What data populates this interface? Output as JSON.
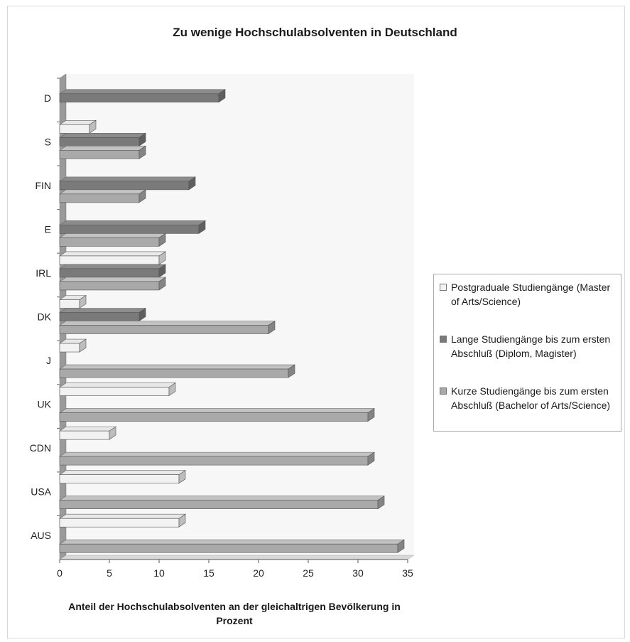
{
  "chart_data": {
    "type": "bar",
    "orientation": "horizontal",
    "title": "Zu wenige Hochschulabsolventen in Deutschland",
    "xlabel": "Anteil der Hochschulabsolventen an der gleichaltrigen Bevölkerung in Prozent",
    "xlim": [
      0,
      35
    ],
    "xticks": [
      "0",
      "5",
      "10",
      "15",
      "20",
      "25",
      "30",
      "35"
    ],
    "categories": [
      "D",
      "S",
      "FIN",
      "E",
      "IRL",
      "DK",
      "J",
      "UK",
      "CDN",
      "USA",
      "AUS"
    ],
    "series": [
      {
        "name": "Postgraduale  Studiengänge (Master of Arts/Science)",
        "color": "#f2f2f2",
        "values": [
          null,
          3,
          null,
          null,
          10,
          2,
          2,
          11,
          5,
          12,
          12
        ]
      },
      {
        "name": "Lange Studiengänge bis zum ersten Abschluß (Diplom, Magister)",
        "color": "#7a7a7a",
        "values": [
          16,
          8,
          13,
          14,
          10,
          8,
          null,
          null,
          null,
          null,
          null
        ]
      },
      {
        "name": "Kurze Studiengänge bis zum ersten Abschluß (Bachelor of Arts/Science)",
        "color": "#a9a9a9",
        "values": [
          null,
          8,
          8,
          10,
          10,
          21,
          23,
          31,
          31,
          32,
          34
        ]
      }
    ],
    "legend_position": "right",
    "grid": false,
    "style": "3d"
  }
}
